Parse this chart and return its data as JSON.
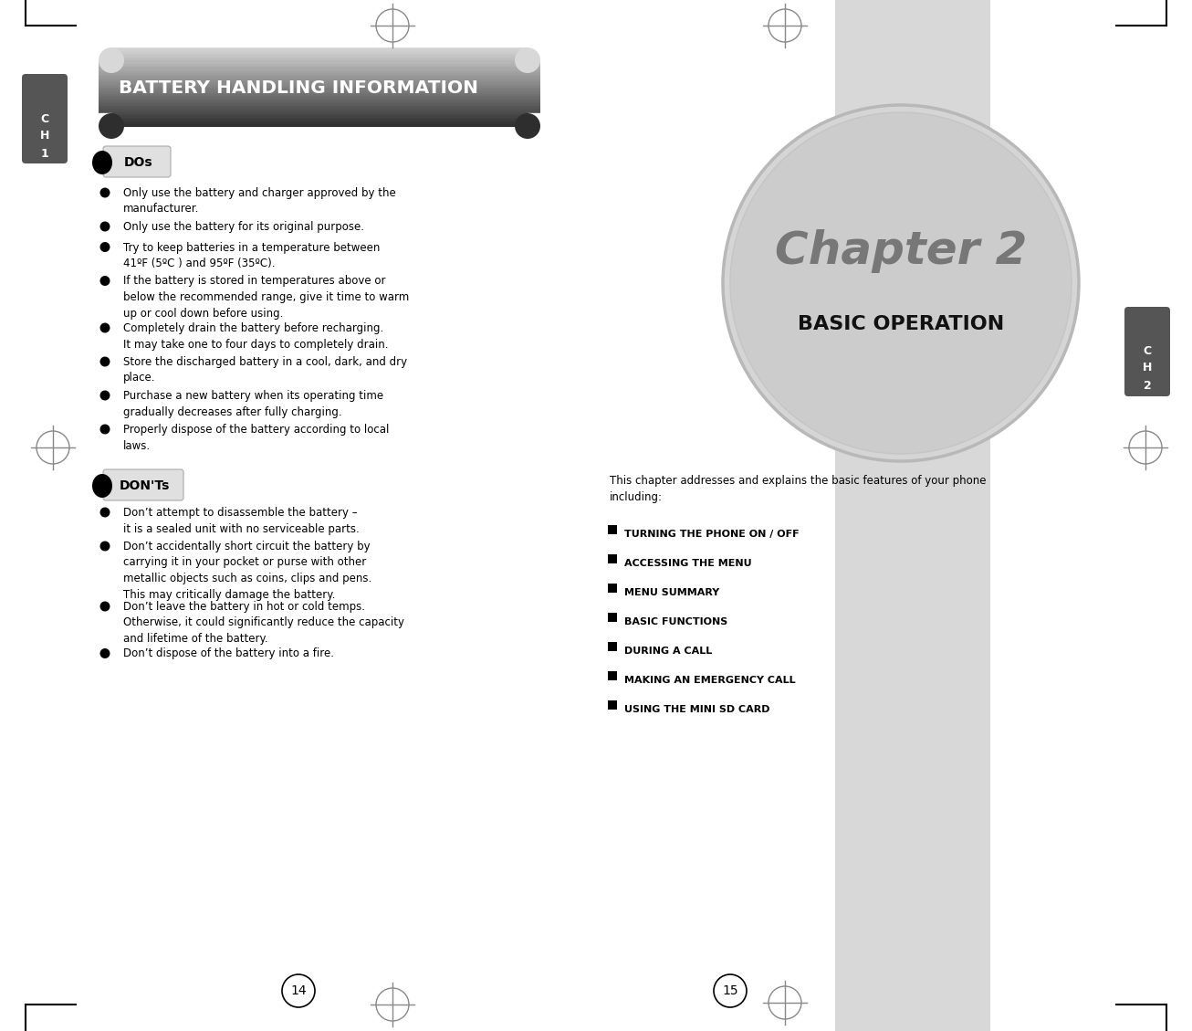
{
  "page_bg": "#ffffff",
  "header_text": "BATTERY HANDLING INFORMATION",
  "header_text_color": "#ffffff",
  "chapter_label": "Chapter 2",
  "chapter_label_color": "#888888",
  "basic_op_label": "BASIC OPERATION",
  "basic_op_color": "#000000",
  "ch1_tab_color": "#555555",
  "ch2_tab_color": "#555555",
  "dos_label": "DOs",
  "donts_label": "DON'Ts",
  "dos_items": [
    "Only use the battery and charger approved by the\nmanufacturer.",
    "Only use the battery for its original purpose.",
    "Try to keep batteries in a temperature between\n41ºF (5ºC ) and 95ºF (35ºC).",
    "If the battery is stored in temperatures above or\nbelow the recommended range, give it time to warm\nup or cool down before using.",
    "Completely drain the battery before recharging.\nIt may take one to four days to completely drain.",
    "Store the discharged battery in a cool, dark, and dry\nplace.",
    "Purchase a new battery when its operating time\ngradually decreases after fully charging.",
    "Properly dispose of the battery according to local\nlaws."
  ],
  "donts_items": [
    "Don’t attempt to disassemble the battery –\nit is a sealed unit with no serviceable parts.",
    "Don’t accidentally short circuit the battery by\ncarrying it in your pocket or purse with other\nmetallic objects such as coins, clips and pens.\nThis may critically damage the battery.",
    "Don’t leave the battery in hot or cold temps.\nOtherwise, it could significantly reduce the capacity\nand lifetime of the battery.",
    "Don’t dispose of the battery into a fire."
  ],
  "right_intro": "This chapter addresses and explains the basic features of your phone\nincluding:",
  "menu_items": [
    "TURNING THE PHONE ON / OFF",
    "ACCESSING THE MENU",
    "MENU SUMMARY",
    "BASIC FUNCTIONS",
    "DURING A CALL",
    "MAKING AN EMERGENCY CALL",
    "USING THE MINI SD CARD"
  ],
  "page_num_left": "14",
  "page_num_right": "15"
}
